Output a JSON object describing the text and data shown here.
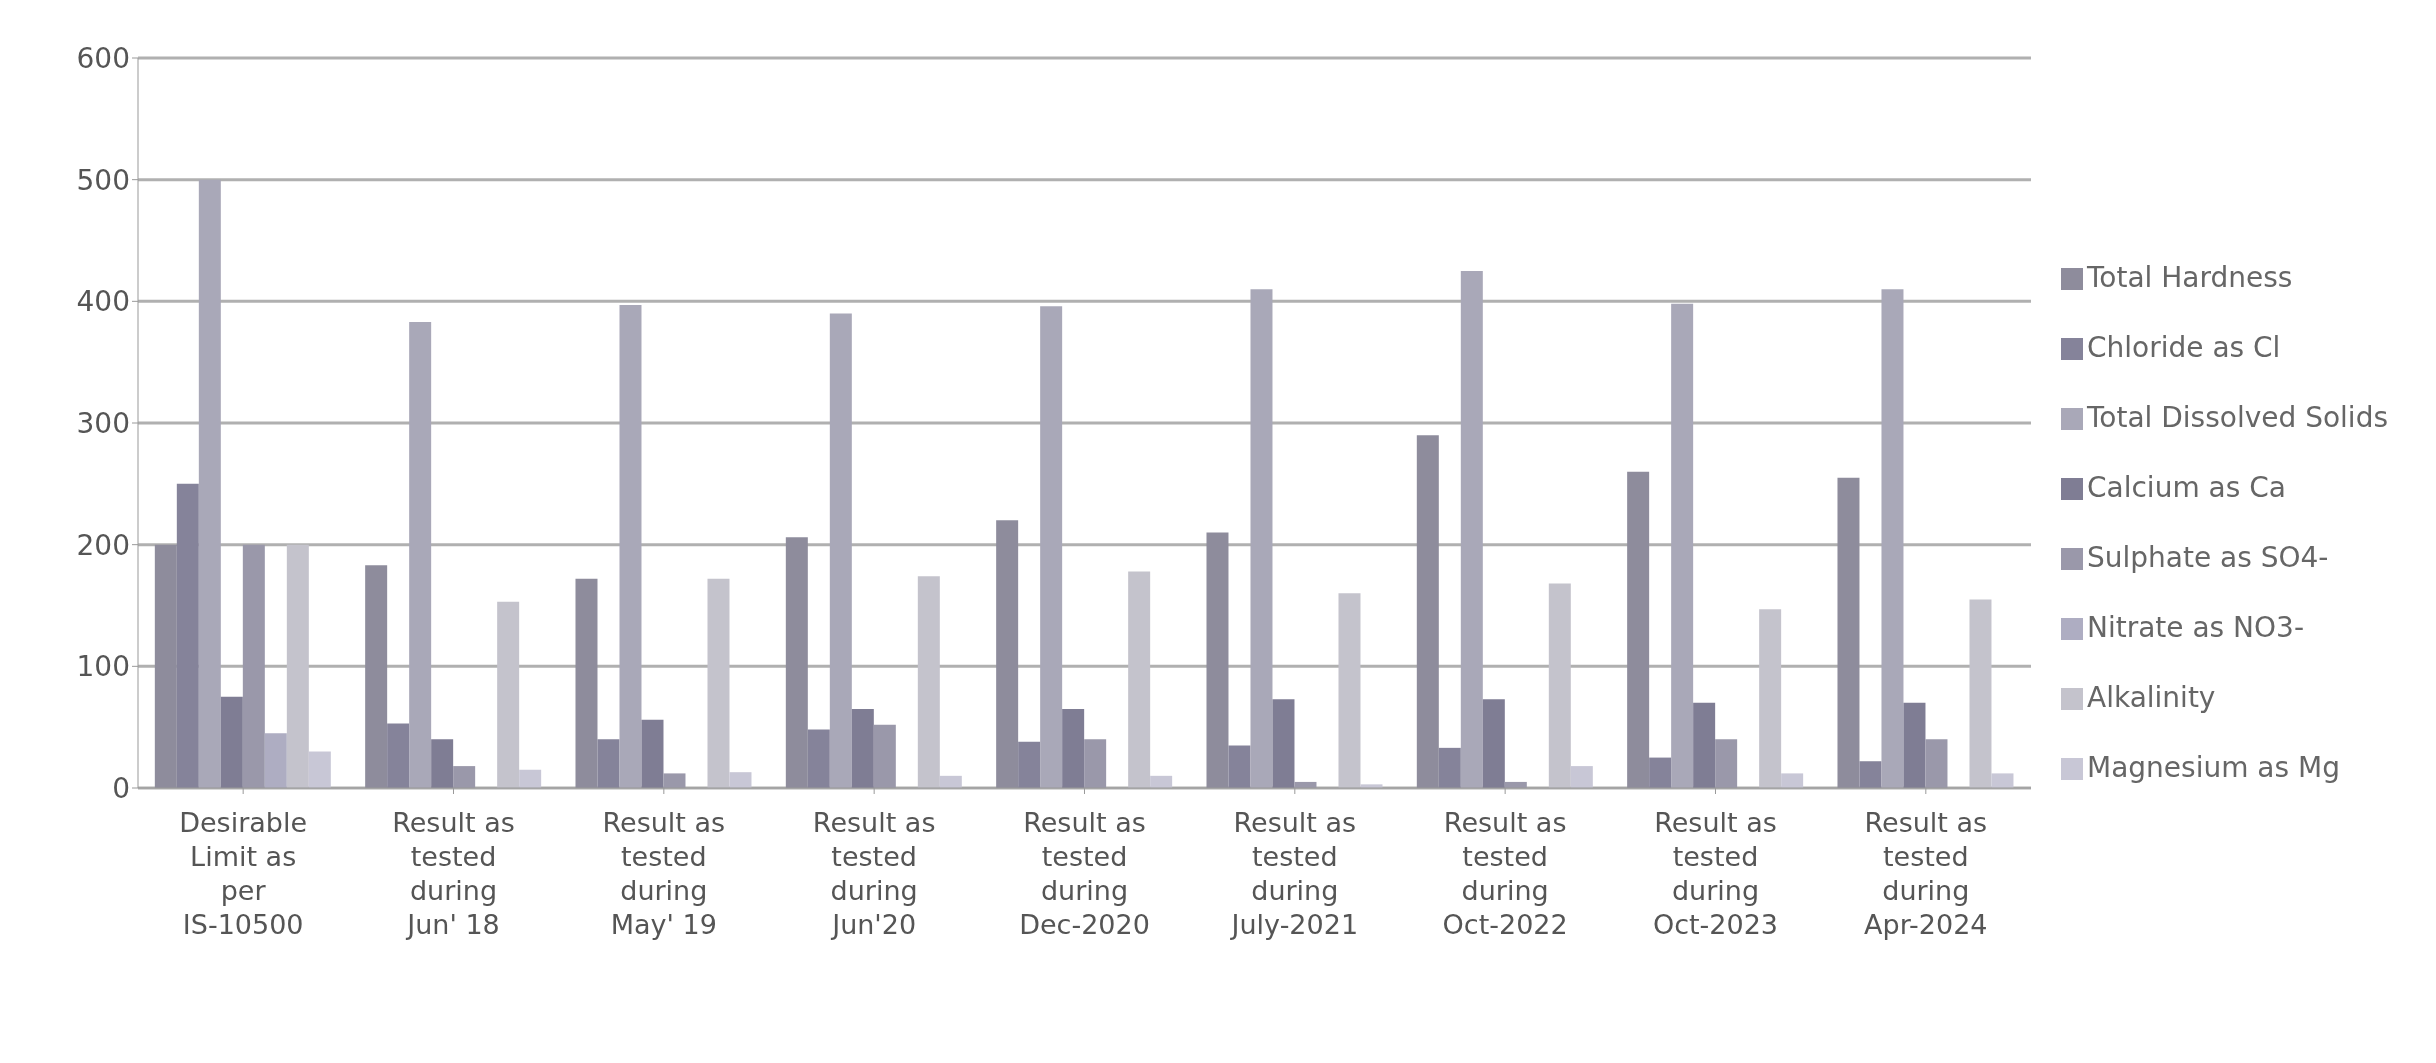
{
  "chart_data": {
    "type": "bar",
    "categories": [
      "Desirable Limit as per IS-10500",
      "Result as tested during Jun' 18",
      "Result as tested during May' 19",
      "Result as tested during Jun'20",
      "Result as tested during Dec-2020",
      "Result as tested during July-2021",
      "Result as tested during Oct-2022",
      "Result as tested during Oct-2023",
      "Result as tested during Apr-2024"
    ],
    "series": [
      {
        "name": "Total Hardness",
        "color": "#8e8c9c",
        "values": [
          200,
          183,
          172,
          206,
          220,
          210,
          290,
          260,
          255
        ]
      },
      {
        "name": "Chloride as Cl",
        "color": "#85839a",
        "values": [
          250,
          53,
          40,
          48,
          38,
          35,
          33,
          25,
          22
        ]
      },
      {
        "name": "Total Dissolved  Solids",
        "color": "#a9a8b8",
        "values": [
          500,
          383,
          397,
          390,
          396,
          410,
          425,
          398,
          410
        ]
      },
      {
        "name": "Calcium as Ca",
        "color": "#7f7d94",
        "values": [
          75,
          40,
          56,
          65,
          65,
          73,
          73,
          70,
          70
        ]
      },
      {
        "name": "Sulphate as SO4-",
        "color": "#9a98aa",
        "values": [
          200,
          18,
          12,
          52,
          40,
          5,
          5,
          40,
          40
        ]
      },
      {
        "name": "Nitrate as NO3-",
        "color": "#aeadc2",
        "values": [
          45,
          0,
          0,
          0,
          0,
          0,
          0,
          0,
          0
        ]
      },
      {
        "name": "Alkalinity",
        "color": "#c4c3cc",
        "values": [
          200,
          153,
          172,
          174,
          178,
          160,
          168,
          147,
          155
        ]
      },
      {
        "name": "Magnesium as Mg",
        "color": "#c8c7d6",
        "values": [
          30,
          15,
          13,
          10,
          10,
          3,
          18,
          12,
          12
        ]
      }
    ],
    "ylim": [
      0,
      600
    ],
    "yticks": [
      0,
      100,
      200,
      300,
      400,
      500,
      600
    ],
    "grid": "y",
    "legend": "right"
  }
}
